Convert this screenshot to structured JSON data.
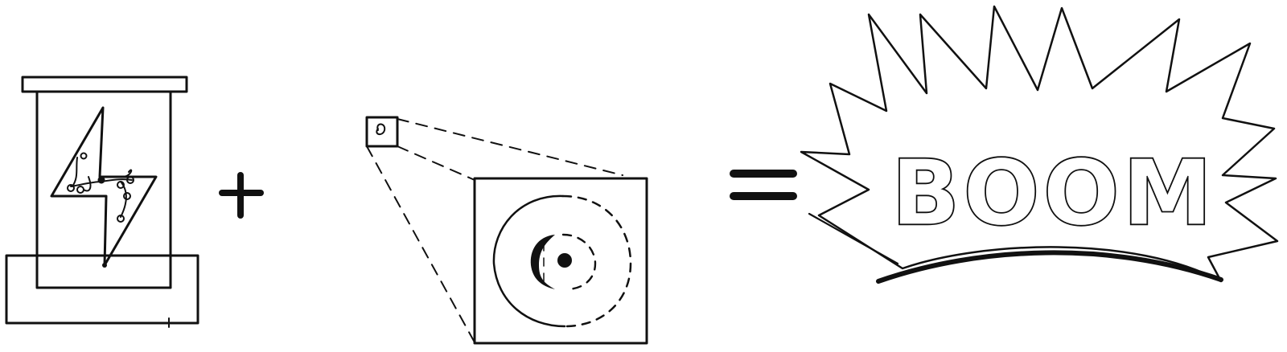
{
  "diagram": {
    "boom_text": "BOOM"
  }
}
